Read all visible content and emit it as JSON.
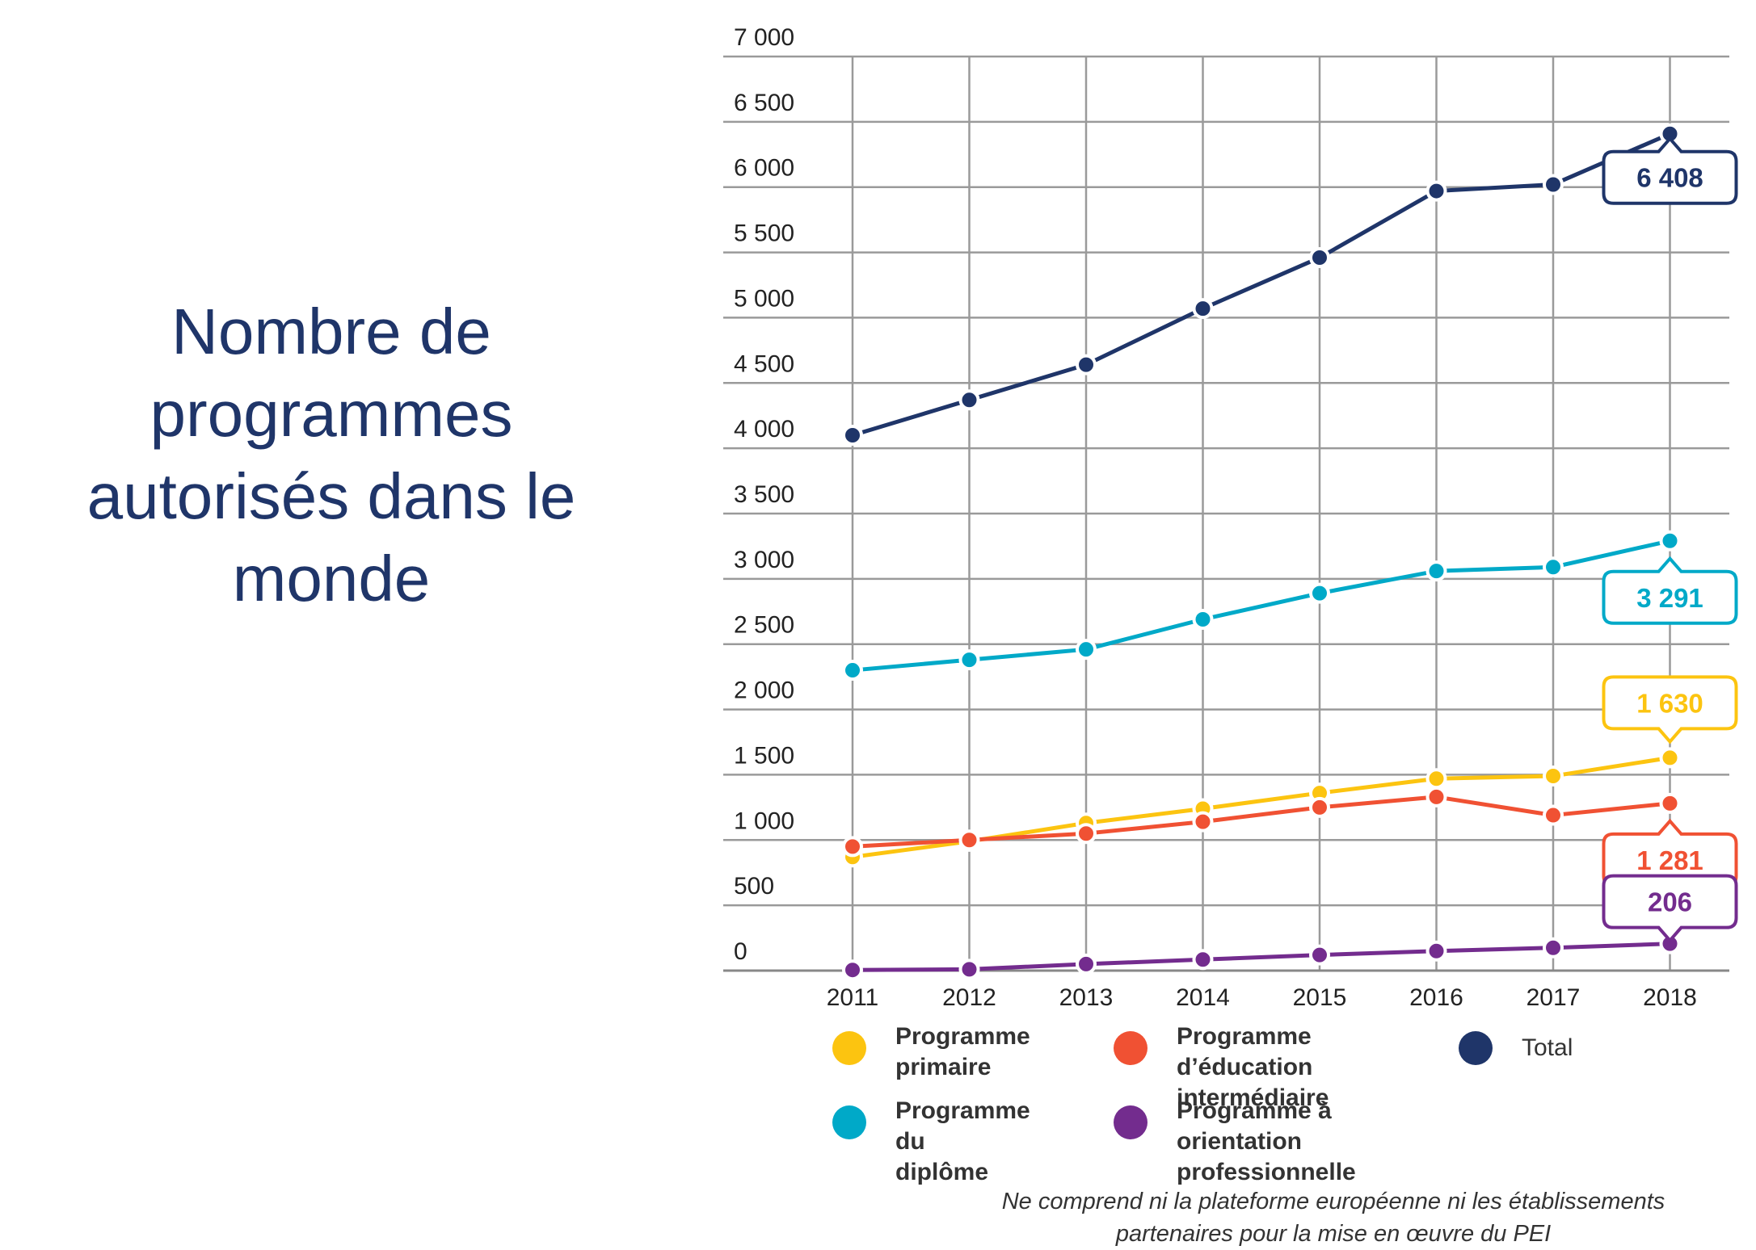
{
  "title_lines": [
    "Nombre de",
    "programmes",
    "autorisés dans le",
    "monde"
  ],
  "footnote_lines": [
    "Ne comprend ni la plateforme européenne ni les établissements",
    "partenaires pour la mise en œuvre du PEI"
  ],
  "chart_data": {
    "type": "line",
    "title": "Nombre de programmes autorisés dans le monde",
    "x": [
      2011,
      2012,
      2013,
      2014,
      2015,
      2016,
      2017,
      2018
    ],
    "ylim": [
      0,
      7000
    ],
    "yticks": [
      0,
      500,
      1000,
      1500,
      2000,
      2500,
      3000,
      3500,
      4000,
      4500,
      5000,
      5500,
      6000,
      6500,
      7000
    ],
    "ytick_labels": [
      "0",
      "500",
      "1 000",
      "1 500",
      "2 000",
      "2 500",
      "3 000",
      "3 500",
      "4 000",
      "4 500",
      "5 000",
      "5 500",
      "6 000",
      "6 500",
      "7 000"
    ],
    "grid": true,
    "legend_position": "bottom",
    "series": [
      {
        "name": "Total",
        "color": "#1f3569",
        "values": [
          4100,
          4370,
          4640,
          5070,
          5460,
          5970,
          6020,
          6408
        ],
        "callout": "6 408"
      },
      {
        "name": "Programme du diplôme",
        "color": "#00a9c8",
        "values": [
          2300,
          2380,
          2460,
          2690,
          2890,
          3060,
          3090,
          3291
        ],
        "callout": "3 291"
      },
      {
        "name": "Programme primaire",
        "color": "#fcc410",
        "values": [
          870,
          990,
          1130,
          1240,
          1360,
          1470,
          1490,
          1630
        ],
        "callout": "1 630"
      },
      {
        "name": "Programme d’éducation intermédiaire",
        "color": "#f05133",
        "values": [
          950,
          1000,
          1050,
          1140,
          1250,
          1330,
          1190,
          1281
        ],
        "callout": "1 281"
      },
      {
        "name": "Programme à orientation professionnelle",
        "color": "#732c8e",
        "values": [
          5,
          10,
          50,
          85,
          120,
          150,
          175,
          206
        ],
        "callout": "206"
      }
    ]
  },
  "legend": [
    {
      "lines": [
        "Programme",
        "primaire"
      ],
      "color": "#fcc410"
    },
    {
      "lines": [
        "Programme d’éducation",
        "intermédiaire"
      ],
      "color": "#f05133"
    },
    {
      "lines": [
        "Total"
      ],
      "color": "#1f3569"
    },
    {
      "lines": [
        "Programme du",
        "diplôme"
      ],
      "color": "#00a9c8"
    },
    {
      "lines": [
        "Programme à orientation",
        "professionnelle"
      ],
      "color": "#732c8e"
    }
  ]
}
